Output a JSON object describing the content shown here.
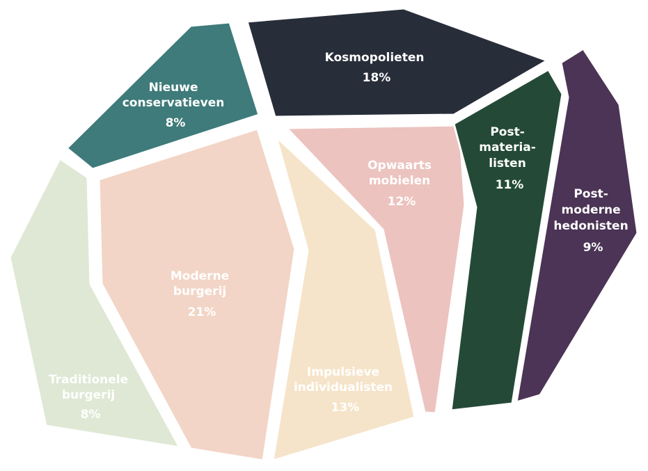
{
  "segments": [
    {
      "id": "traditionele-burgerij",
      "lines": [
        "Traditionele",
        "burgerij"
      ],
      "percent": "8%",
      "color": "#dfe8d4",
      "text_color": "#ffffff"
    },
    {
      "id": "nieuwe-conservatieven",
      "lines": [
        "Nieuwe",
        "conservatieven"
      ],
      "percent": "8%",
      "color": "#3e7b7a",
      "text_color": "#ffffff"
    },
    {
      "id": "moderne-burgerij",
      "lines": [
        "Moderne",
        "burgerij"
      ],
      "percent": "21%",
      "color": "#f2d5c6",
      "text_color": "#ffffff"
    },
    {
      "id": "kosmopolieten",
      "lines": [
        "Kosmopolieten"
      ],
      "percent": "18%",
      "color": "#282d3a",
      "text_color": "#ffffff"
    },
    {
      "id": "impulsieve-individualisten",
      "lines": [
        "Impulsieve",
        "individualisten"
      ],
      "percent": "13%",
      "color": "#f5e4c9",
      "text_color": "#ffffff"
    },
    {
      "id": "opwaarts-mobielen",
      "lines": [
        "Opwaarts",
        "mobielen"
      ],
      "percent": "12%",
      "color": "#ecc3bf",
      "text_color": "#ffffff"
    },
    {
      "id": "post-materialisten",
      "lines": [
        "Post-",
        "materia-",
        "listen"
      ],
      "percent": "11%",
      "color": "#244a37",
      "text_color": "#ffffff"
    },
    {
      "id": "post-moderne-hedonisten",
      "lines": [
        "Post-",
        "moderne",
        "hedonisten"
      ],
      "percent": "9%",
      "color": "#4b3455",
      "text_color": "#ffffff"
    }
  ]
}
